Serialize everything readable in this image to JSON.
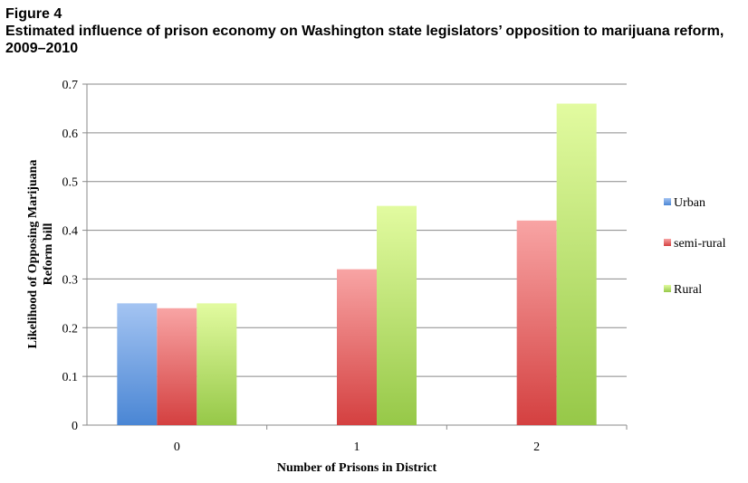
{
  "figure": {
    "label": "Figure 4",
    "title": "Estimated influence of prison economy on Washington state legislators’ opposition to marijuana reform, 2009–2010"
  },
  "chart_data": {
    "type": "bar",
    "categories": [
      "0",
      "1",
      "2"
    ],
    "series": [
      {
        "name": "Urban",
        "values": [
          0.25,
          null,
          null
        ],
        "color": "#4a86d4",
        "color_light": "#a4c4f2"
      },
      {
        "name": "semi-rural",
        "values": [
          0.24,
          0.32,
          0.42
        ],
        "color": "#d44040",
        "color_light": "#f8a4a4"
      },
      {
        "name": "Rural",
        "values": [
          0.25,
          0.45,
          0.66
        ],
        "color": "#96c848",
        "color_light": "#e2fba0"
      }
    ],
    "xlabel": "Number of Prisons in District",
    "ylabel": "Likelihood of Opposing Marijuana Reform bill",
    "ylabel_lines": [
      "Likelihood of Opposing Marijuana",
      "Reform bill"
    ],
    "ylim": [
      0,
      0.7
    ],
    "yticks": [
      "0",
      "0.1",
      "0.2",
      "0.3",
      "0.4",
      "0.5",
      "0.6",
      "0.7"
    ],
    "grid": true,
    "legend_position": "right"
  }
}
